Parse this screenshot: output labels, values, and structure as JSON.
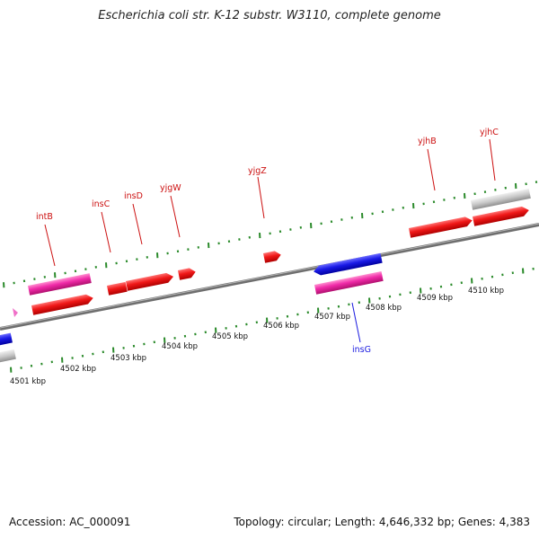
{
  "title": "Escherichia coli str. K-12 substr. W3110, complete genome",
  "footer": {
    "accession": "Accession: AC_000091",
    "summary": "Topology: circular; Length: 4,646,332 bp; Genes: 4,383"
  },
  "colors": {
    "forward_gene": "#ee1111",
    "reverse_gene": "#1a1ae0",
    "mobile_forward": "#ee2aa0",
    "pseudo": "#c4c4c4",
    "backbone": "#7a7a7a",
    "tick": "#2a8a2a",
    "label_top": "#cc1111",
    "label_bottom": "#1a1ae0"
  },
  "scale_labels": [
    "4501 kbp",
    "4502 kbp",
    "4503 kbp",
    "4504 kbp",
    "4505 kbp",
    "4506 kbp",
    "4507 kbp",
    "4508 kbp",
    "4509 kbp",
    "4510 kbp"
  ],
  "genes": {
    "intB": "intB",
    "insC": "insC",
    "insD": "insD",
    "yjgW": "yjgW",
    "yjgZ": "yjgZ",
    "yjhB": "yjhB",
    "yjhC": "yjhC",
    "insG": "insG"
  }
}
